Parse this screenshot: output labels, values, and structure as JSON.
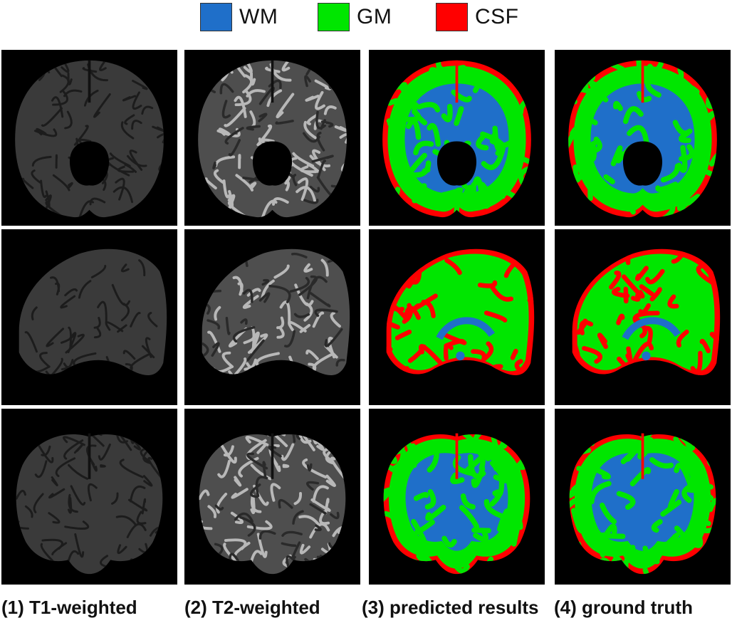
{
  "legend": [
    {
      "label": "WM",
      "color": "#1f6fc9"
    },
    {
      "label": "GM",
      "color": "#00e600"
    },
    {
      "label": "CSF",
      "color": "#ff0000"
    }
  ],
  "columns": [
    {
      "caption": "(1) T1-weighted",
      "kind": "t1"
    },
    {
      "caption": "(2) T2-weighted",
      "kind": "t2"
    },
    {
      "caption": "(3) predicted results",
      "kind": "seg"
    },
    {
      "caption": "(4) ground truth",
      "kind": "seg"
    }
  ],
  "rows": [
    "axial",
    "sagittal",
    "coronal"
  ],
  "colors": {
    "wm": "#1f6fc9",
    "gm": "#00e600",
    "csf": "#ff0000",
    "background": "#000000"
  }
}
